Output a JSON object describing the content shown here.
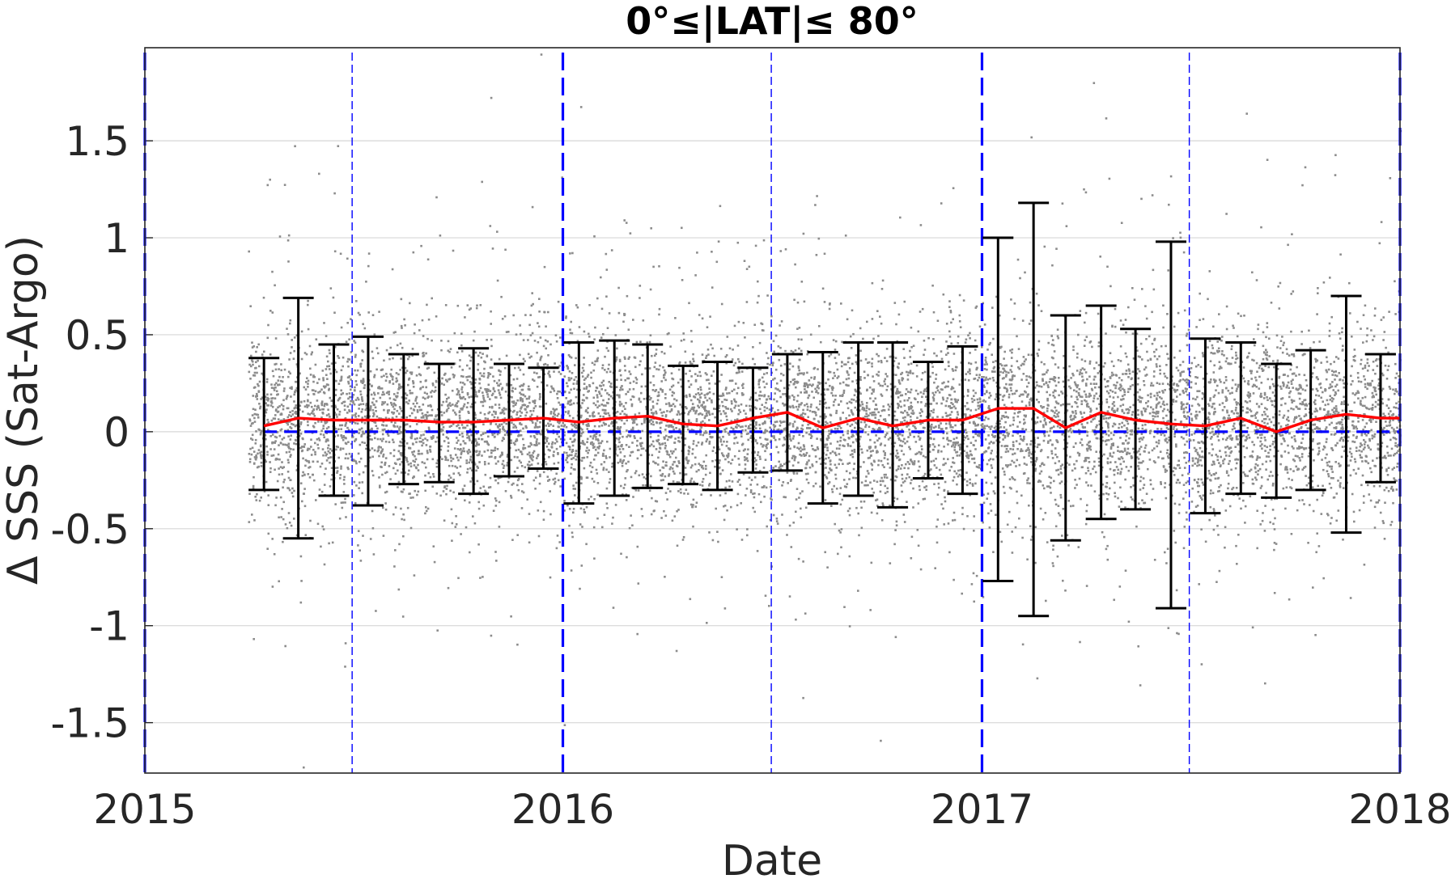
{
  "chart_data": {
    "type": "scatter",
    "title": "0°≤|LAT|≤ 80°",
    "xlabel": "Date",
    "ylabel": "Δ SSS (Sat-Argo)",
    "xlim": [
      "2015-01-01",
      "2018-01-01"
    ],
    "ylim": [
      -1.76,
      1.98
    ],
    "x_ticks": [
      "2015",
      "2016",
      "2017",
      "2018"
    ],
    "y_ticks": [
      {
        "value": 1.5,
        "label": "1.5"
      },
      {
        "value": 1,
        "label": "1"
      },
      {
        "value": 0.5,
        "label": "0.5"
      },
      {
        "value": 0,
        "label": "0"
      },
      {
        "value": -0.5,
        "label": "-0.5"
      },
      {
        "value": -1,
        "label": "-1"
      },
      {
        "value": -1.5,
        "label": "-1.5"
      }
    ],
    "grid": "horizontal",
    "colors": {
      "scatter": "#8c8c8c",
      "mean_line": "#ff0000",
      "error_bars": "#000000",
      "year_lines": "#0000ff",
      "zero_line": "#0000ff",
      "grid": "#dddddd"
    },
    "year_boundaries": [
      "2015-01-01",
      "2016-01-01",
      "2017-01-01",
      "2018-01-01"
    ],
    "mid_year_lines": [
      "2015-07-01",
      "2016-07-01",
      "2017-07-01"
    ],
    "zero_line": 0,
    "series": [
      {
        "style": "line-with-error-bars",
        "x": [
          "2015-04-15",
          "2015-05-15",
          "2015-06-15",
          "2015-07-15",
          "2015-08-15",
          "2015-09-15",
          "2015-10-15",
          "2015-11-15",
          "2015-12-15",
          "2016-01-15",
          "2016-02-15",
          "2016-03-15",
          "2016-04-15",
          "2016-05-15",
          "2016-06-15",
          "2016-07-15",
          "2016-08-15",
          "2016-09-15",
          "2016-10-15",
          "2016-11-15",
          "2016-12-15",
          "2017-01-15",
          "2017-02-15",
          "2017-03-15",
          "2017-04-15",
          "2017-05-15",
          "2017-06-15",
          "2017-07-15",
          "2017-08-15",
          "2017-09-15",
          "2017-10-15",
          "2017-11-15",
          "2017-12-15"
        ],
        "y": [
          0.03,
          0.07,
          0.06,
          0.06,
          0.06,
          0.05,
          0.05,
          0.06,
          0.07,
          0.05,
          0.07,
          0.08,
          0.04,
          0.03,
          0.07,
          0.1,
          0.02,
          0.07,
          0.03,
          0.06,
          0.06,
          0.12,
          0.12,
          0.02,
          0.1,
          0.06,
          0.04,
          0.03,
          0.07,
          0.0,
          0.06,
          0.09,
          0.07
        ],
        "upper": [
          0.38,
          0.69,
          0.45,
          0.49,
          0.4,
          0.35,
          0.43,
          0.35,
          0.33,
          0.46,
          0.47,
          0.45,
          0.34,
          0.36,
          0.33,
          0.4,
          0.41,
          0.46,
          0.46,
          0.36,
          0.44,
          1.0,
          1.18,
          0.6,
          0.65,
          0.53,
          0.98,
          0.48,
          0.46,
          0.35,
          0.42,
          0.7,
          0.4
        ],
        "lower": [
          -0.3,
          -0.55,
          -0.33,
          -0.38,
          -0.27,
          -0.26,
          -0.32,
          -0.23,
          -0.19,
          -0.37,
          -0.33,
          -0.29,
          -0.27,
          -0.3,
          -0.21,
          -0.2,
          -0.37,
          -0.33,
          -0.39,
          -0.24,
          -0.32,
          -0.77,
          -0.95,
          -0.56,
          -0.45,
          -0.4,
          -0.91,
          -0.42,
          -0.32,
          -0.34,
          -0.3,
          -0.52,
          -0.26
        ]
      },
      {
        "style": "scatter-cloud",
        "x_range": [
          "2015-04-01",
          "2018-01-01"
        ],
        "center": 0.06,
        "spread": 0.22
      }
    ]
  }
}
